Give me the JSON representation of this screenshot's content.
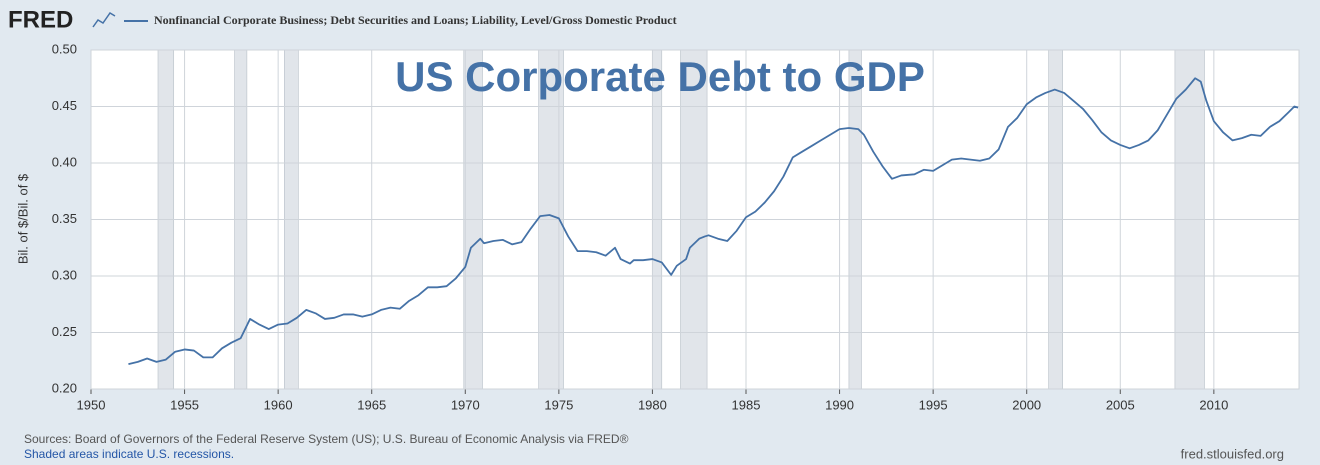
{
  "brand": "FRED",
  "chart_data": {
    "type": "line",
    "title": "US Corporate Debt to GDP",
    "ylabel": "Bil. of $/Bil. of $",
    "sources": "Sources: Board of Governors of the Federal Reserve System (US); U.S. Bureau of Economic Analysis via FRED®",
    "recession_note": "Shaded areas indicate U.S. recessions.",
    "site": "fred.stlouisfed.org",
    "xlim": [
      1950,
      2014.55
    ],
    "xticks": [
      1950,
      1955,
      1960,
      1965,
      1970,
      1975,
      1980,
      1985,
      1990,
      1995,
      2000,
      2005,
      2010
    ],
    "ylim": [
      0.2,
      0.5
    ],
    "yticks": [
      {
        "value": 0.2,
        "label": "0.20"
      },
      {
        "value": 0.25,
        "label": "0.25"
      },
      {
        "value": 0.3,
        "label": "0.30"
      },
      {
        "value": 0.35,
        "label": "0.35"
      },
      {
        "value": 0.4,
        "label": "0.40"
      },
      {
        "value": 0.45,
        "label": "0.45"
      },
      {
        "value": 0.5,
        "label": "0.50"
      }
    ],
    "grid": true,
    "recessions": [
      [
        1953.58,
        1954.42
      ],
      [
        1957.67,
        1958.33
      ],
      [
        1960.33,
        1961.08
      ],
      [
        1969.92,
        1970.92
      ],
      [
        1973.92,
        1975.25
      ],
      [
        1980.0,
        1980.5
      ],
      [
        1981.5,
        1982.92
      ],
      [
        1990.5,
        1991.17
      ],
      [
        2001.17,
        2001.92
      ],
      [
        2007.92,
        2009.5
      ]
    ],
    "recession_color": "#e1e5ea",
    "x": [
      1952,
      1952.5,
      1953,
      1953.5,
      1954,
      1954.5,
      1955,
      1955.5,
      1956,
      1956.5,
      1957,
      1957.5,
      1958,
      1958.5,
      1959,
      1959.5,
      1960,
      1960.5,
      1961,
      1961.5,
      1962,
      1962.5,
      1963,
      1963.5,
      1964,
      1964.5,
      1965,
      1965.5,
      1966,
      1966.5,
      1967,
      1967.5,
      1968,
      1968.5,
      1969,
      1969.5,
      1970,
      1970.3,
      1970.8,
      1971,
      1971.5,
      1972,
      1972.5,
      1973,
      1973.5,
      1974,
      1974.5,
      1975,
      1975.5,
      1976,
      1976.5,
      1977,
      1977.5,
      1978,
      1978.3,
      1978.8,
      1979,
      1979.5,
      1980,
      1980.5,
      1981,
      1981.3,
      1981.8,
      1982,
      1982.5,
      1982.8,
      1983,
      1983.5,
      1984,
      1984.5,
      1985,
      1985.5,
      1986,
      1986.5,
      1987,
      1987.5,
      1988,
      1988.5,
      1989,
      1989.5,
      1990,
      1990.5,
      1991,
      1991.3,
      1991.8,
      1992.3,
      1992.8,
      1993.3,
      1994,
      1994.5,
      1995,
      1995.5,
      1996,
      1996.5,
      1997,
      1997.5,
      1998,
      1998.5,
      1999,
      1999.5,
      2000,
      2000.5,
      2001,
      2001.5,
      2002,
      2002.5,
      2003,
      2003.5,
      2004,
      2004.5,
      2005,
      2005.5,
      2006,
      2006.5,
      2007,
      2007.5,
      2008,
      2008.5,
      2009,
      2009.3,
      2009.6,
      2010,
      2010.5,
      2011,
      2011.5,
      2012,
      2012.5,
      2013,
      2013.5,
      2014,
      2014.3,
      2014.5
    ],
    "series": [
      {
        "name": "Nonfinancial Corporate Business; Debt Securities and Loans; Liability, Level/Gross Domestic Product",
        "color": "#4572a7",
        "values": [
          0.222,
          0.224,
          0.227,
          0.224,
          0.226,
          0.233,
          0.235,
          0.234,
          0.228,
          0.228,
          0.236,
          0.241,
          0.245,
          0.262,
          0.257,
          0.253,
          0.257,
          0.258,
          0.263,
          0.27,
          0.267,
          0.262,
          0.263,
          0.266,
          0.266,
          0.264,
          0.266,
          0.27,
          0.272,
          0.271,
          0.278,
          0.283,
          0.29,
          0.29,
          0.291,
          0.298,
          0.308,
          0.325,
          0.333,
          0.329,
          0.331,
          0.332,
          0.328,
          0.33,
          0.342,
          0.353,
          0.354,
          0.351,
          0.335,
          0.322,
          0.322,
          0.321,
          0.318,
          0.325,
          0.315,
          0.311,
          0.314,
          0.314,
          0.315,
          0.312,
          0.301,
          0.309,
          0.315,
          0.325,
          0.333,
          0.335,
          0.336,
          0.333,
          0.331,
          0.34,
          0.352,
          0.357,
          0.365,
          0.375,
          0.388,
          0.405,
          0.41,
          0.415,
          0.42,
          0.425,
          0.43,
          0.431,
          0.43,
          0.425,
          0.41,
          0.397,
          0.386,
          0.389,
          0.39,
          0.394,
          0.393,
          0.398,
          0.403,
          0.404,
          0.403,
          0.402,
          0.404,
          0.412,
          0.432,
          0.44,
          0.452,
          0.458,
          0.462,
          0.465,
          0.462,
          0.455,
          0.448,
          0.438,
          0.427,
          0.42,
          0.416,
          0.413,
          0.416,
          0.42,
          0.429,
          0.443,
          0.457,
          0.465,
          0.475,
          0.472,
          0.455,
          0.437,
          0.427,
          0.42,
          0.422,
          0.425,
          0.424,
          0.432,
          0.437,
          0.445,
          0.45,
          0.449
        ]
      }
    ]
  }
}
